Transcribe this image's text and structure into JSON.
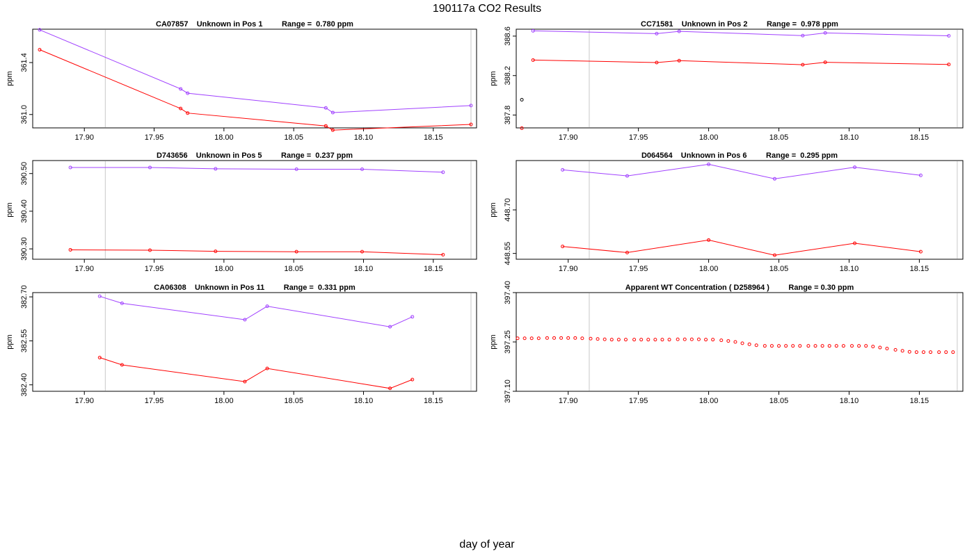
{
  "page": {
    "title": "190117a  CO2 Results",
    "xlabel": "day of year"
  },
  "colors": {
    "purple": "#a040ff",
    "red": "#ff0000",
    "black": "#000000",
    "vline": "#c8c8c8"
  },
  "chart_data": [
    {
      "type": "line",
      "title": "CA07857    Unknown in Pos 1         Range =  0.780 ppm",
      "xlabel": "",
      "ylabel": "ppm",
      "xlim": [
        17.863,
        18.181
      ],
      "ylim": [
        360.897,
        361.657
      ],
      "xticks": [
        17.9,
        17.95,
        18.0,
        18.05,
        18.1,
        18.15
      ],
      "xtick_labels": [
        "17.90",
        "17.95",
        "18.00",
        "18.05",
        "18.10",
        "18.15"
      ],
      "yticks": [
        361.0,
        361.4
      ],
      "ytick_labels": [
        "361.0",
        "361.4"
      ],
      "vlines": [
        17.915,
        18.177
      ],
      "series": [
        {
          "color": "purple",
          "x": [
            17.868,
            17.969,
            17.974,
            18.073,
            18.078,
            18.177
          ],
          "y": [
            361.652,
            361.197,
            361.164,
            361.051,
            361.015,
            361.069
          ]
        },
        {
          "color": "red",
          "x": [
            17.868,
            17.969,
            17.974,
            18.073,
            18.078,
            18.177
          ],
          "y": [
            361.499,
            361.046,
            361.011,
            360.912,
            360.88,
            360.924
          ]
        }
      ]
    },
    {
      "type": "line",
      "title": "CC71581    Unknown in Pos 2         Range =  0.978 ppm",
      "xlabel": "",
      "ylabel": "ppm",
      "xlim": [
        17.863,
        18.181
      ],
      "ylim": [
        387.67,
        388.67
      ],
      "xticks": [
        17.9,
        17.95,
        18.0,
        18.05,
        18.1,
        18.15
      ],
      "xtick_labels": [
        "17.90",
        "17.95",
        "18.00",
        "18.05",
        "18.10",
        "18.15"
      ],
      "yticks": [
        387.8,
        388.2,
        388.6
      ],
      "ytick_labels": [
        "387.8",
        "388.2",
        "388.6"
      ],
      "vlines": [
        17.915,
        18.177
      ],
      "series": [
        {
          "color": "purple",
          "x": [
            17.875,
            17.963,
            17.979,
            18.067,
            18.083,
            18.171
          ],
          "y": [
            388.653,
            388.625,
            388.648,
            388.605,
            388.632,
            388.603
          ]
        },
        {
          "color": "red",
          "x": [
            17.875,
            17.963,
            17.979,
            18.067,
            18.083,
            18.171
          ],
          "y": [
            388.357,
            388.332,
            388.351,
            388.31,
            388.335,
            388.313
          ]
        }
      ],
      "points": [
        {
          "color": "black",
          "x": 17.867,
          "y": 387.955
        },
        {
          "color": "red",
          "x": 17.867,
          "y": 387.667
        }
      ]
    },
    {
      "type": "line",
      "title": "D743656    Unknown in Pos 5         Range =  0.237 ppm",
      "xlabel": "",
      "ylabel": "ppm",
      "xlim": [
        17.863,
        18.181
      ],
      "ylim": [
        390.2725,
        390.5345
      ],
      "xticks": [
        17.9,
        17.95,
        18.0,
        18.05,
        18.1,
        18.15
      ],
      "xtick_labels": [
        "17.90",
        "17.95",
        "18.00",
        "18.05",
        "18.10",
        "18.15"
      ],
      "yticks": [
        390.3,
        390.4,
        390.5
      ],
      "ytick_labels": [
        "390.30",
        "390.40",
        "390.50"
      ],
      "vlines": [
        17.915,
        18.177
      ],
      "series": [
        {
          "color": "purple",
          "x": [
            17.89,
            17.947,
            17.994,
            18.052,
            18.099,
            18.157
          ],
          "y": [
            390.516,
            390.516,
            390.5125,
            390.5115,
            390.5115,
            390.5035
          ]
        },
        {
          "color": "red",
          "x": [
            17.89,
            17.947,
            17.994,
            18.052,
            18.099,
            18.157
          ],
          "y": [
            390.2975,
            390.2965,
            390.2935,
            390.2925,
            390.2925,
            390.2845
          ]
        }
      ]
    },
    {
      "type": "line",
      "title": "D064564    Unknown in Pos 6         Range =  0.295 ppm",
      "xlabel": "",
      "ylabel": "ppm",
      "xlim": [
        17.863,
        18.181
      ],
      "ylim": [
        448.53,
        448.87
      ],
      "xticks": [
        17.9,
        17.95,
        18.0,
        18.05,
        18.1,
        18.15
      ],
      "xtick_labels": [
        "17.90",
        "17.95",
        "18.00",
        "18.05",
        "18.10",
        "18.15"
      ],
      "yticks": [
        448.55,
        448.7
      ],
      "ytick_labels": [
        "448.55",
        "448.70"
      ],
      "vlines": [
        17.915,
        18.177
      ],
      "series": [
        {
          "color": "purple",
          "x": [
            17.896,
            17.942,
            18.0,
            18.047,
            18.104,
            18.151
          ],
          "y": [
            448.838,
            448.817,
            448.857,
            448.807,
            448.847,
            448.819
          ]
        },
        {
          "color": "red",
          "x": [
            17.896,
            17.942,
            18.0,
            18.047,
            18.104,
            18.151
          ],
          "y": [
            448.574,
            448.553,
            448.596,
            448.544,
            448.585,
            448.556
          ]
        }
      ]
    },
    {
      "type": "line",
      "title": "CA06308    Unknown in Pos 11         Range =  0.331 ppm",
      "xlabel": "",
      "ylabel": "ppm",
      "xlim": [
        17.863,
        18.181
      ],
      "ylim": [
        382.378,
        382.7145
      ],
      "xticks": [
        17.9,
        17.95,
        18.0,
        18.05,
        18.1,
        18.15
      ],
      "xtick_labels": [
        "17.90",
        "17.95",
        "18.00",
        "18.05",
        "18.10",
        "18.15"
      ],
      "yticks": [
        382.4,
        382.55,
        382.7
      ],
      "ytick_labels": [
        "382.40",
        "382.55",
        "382.70"
      ],
      "vlines": [
        17.915,
        18.177
      ],
      "series": [
        {
          "color": "purple",
          "x": [
            17.911,
            17.927,
            18.015,
            18.031,
            18.119,
            18.135
          ],
          "y": [
            382.702,
            382.678,
            382.622,
            382.668,
            382.598,
            382.632
          ]
        },
        {
          "color": "red",
          "x": [
            17.911,
            17.927,
            18.015,
            18.031,
            18.119,
            18.135
          ],
          "y": [
            382.493,
            382.468,
            382.411,
            382.456,
            382.388,
            382.418
          ]
        }
      ]
    },
    {
      "type": "scatter",
      "title": "Apparent WT Concentration ( D258964 )         Range = 0.30 ppm",
      "xlabel": "",
      "ylabel": "ppm",
      "xlim": [
        17.863,
        18.181
      ],
      "ylim": [
        397.1,
        397.4
      ],
      "xticks": [
        17.9,
        17.95,
        18.0,
        18.05,
        18.1,
        18.15
      ],
      "xtick_labels": [
        "17.90",
        "17.95",
        "18.00",
        "18.05",
        "18.10",
        "18.15"
      ],
      "yticks": [
        397.1,
        397.25,
        397.4
      ],
      "ytick_labels": [
        "397.10",
        "397.25",
        "397.40"
      ],
      "vlines": [
        17.915,
        18.177
      ],
      "series": [
        {
          "color": "red",
          "x": [
            17.864,
            17.869,
            17.874,
            17.879,
            17.885,
            17.89,
            17.895,
            17.9,
            17.905,
            17.91,
            17.916,
            17.921,
            17.926,
            17.931,
            17.936,
            17.941,
            17.947,
            17.952,
            17.957,
            17.962,
            17.967,
            17.972,
            17.978,
            17.983,
            17.988,
            17.993,
            17.998,
            18.003,
            18.009,
            18.014,
            18.019,
            18.024,
            18.029,
            18.034,
            18.04,
            18.045,
            18.05,
            18.055,
            18.06,
            18.065,
            18.071,
            18.076,
            18.081,
            18.086,
            18.091,
            18.096,
            18.102,
            18.107,
            18.112,
            18.117,
            18.122,
            18.127,
            18.133,
            18.138,
            18.143,
            18.148,
            18.153,
            18.158,
            18.164,
            18.169,
            18.174
          ],
          "y": [
            397.261,
            397.261,
            397.261,
            397.261,
            397.262,
            397.262,
            397.262,
            397.262,
            397.262,
            397.261,
            397.26,
            397.259,
            397.258,
            397.257,
            397.257,
            397.257,
            397.257,
            397.257,
            397.257,
            397.257,
            397.257,
            397.257,
            397.258,
            397.258,
            397.258,
            397.258,
            397.257,
            397.257,
            397.255,
            397.253,
            397.25,
            397.246,
            397.243,
            397.24,
            397.238,
            397.238,
            397.238,
            397.238,
            397.238,
            397.238,
            397.238,
            397.238,
            397.238,
            397.238,
            397.238,
            397.238,
            397.238,
            397.238,
            397.238,
            397.236,
            397.233,
            397.23,
            397.226,
            397.223,
            397.22,
            397.219,
            397.219,
            397.219,
            397.219,
            397.219,
            397.219
          ]
        }
      ]
    }
  ]
}
